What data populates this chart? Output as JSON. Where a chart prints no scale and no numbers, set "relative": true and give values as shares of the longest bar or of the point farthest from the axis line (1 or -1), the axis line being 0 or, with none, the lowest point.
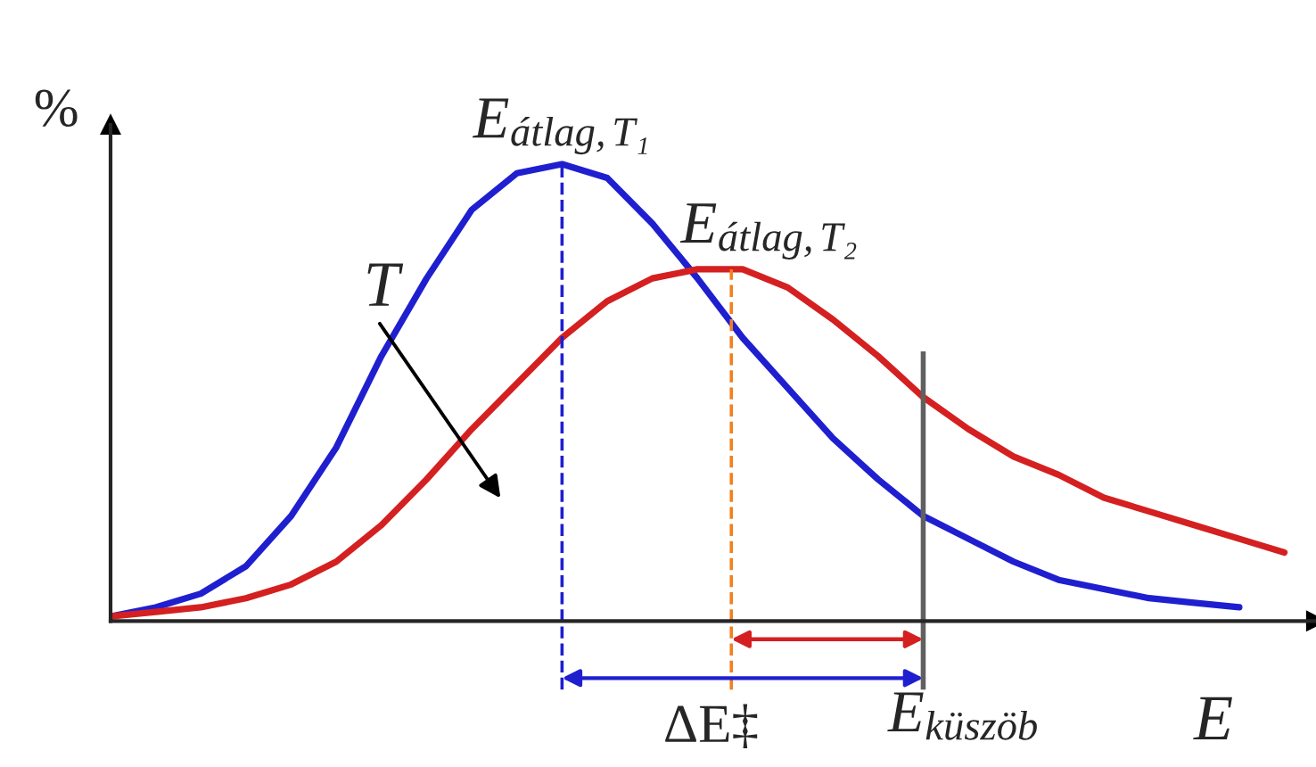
{
  "chart_data": {
    "type": "line",
    "relative": true,
    "xlabel": "E",
    "ylabel": "%",
    "categories": [
      null,
      null,
      null,
      null,
      null,
      null,
      null,
      null,
      null,
      null,
      null,
      null,
      null,
      null,
      null,
      null,
      null,
      null,
      null,
      null,
      null,
      null,
      null,
      null,
      null,
      null,
      null
    ],
    "series": [
      {
        "color": "#1f1fd0",
        "values": [
          0.01,
          0.03,
          0.06,
          0.12,
          0.23,
          0.38,
          0.58,
          0.75,
          0.9,
          0.98,
          1,
          0.97,
          0.87,
          0.75,
          0.62,
          0.51,
          0.4,
          0.31,
          0.23,
          0.18,
          0.13,
          0.09,
          0.07,
          0.05,
          0.04,
          0.03,
          null
        ]
      },
      {
        "color": "#d42020",
        "values": [
          0.01,
          0.02,
          0.03,
          0.05,
          0.08,
          0.13,
          0.21,
          0.31,
          0.42,
          0.52,
          0.62,
          0.7,
          0.75,
          0.77,
          0.77,
          0.73,
          0.66,
          0.58,
          0.49,
          0.42,
          0.36,
          0.32,
          0.27,
          0.24,
          0.21,
          0.18,
          0.15
        ]
      }
    ],
    "annotations": [
      "E$_{átlag,T₁}$",
      "E$_{átlag,T₂}$",
      "E$_{küszöb}$",
      "T",
      "ΔE‡"
    ]
  }
}
